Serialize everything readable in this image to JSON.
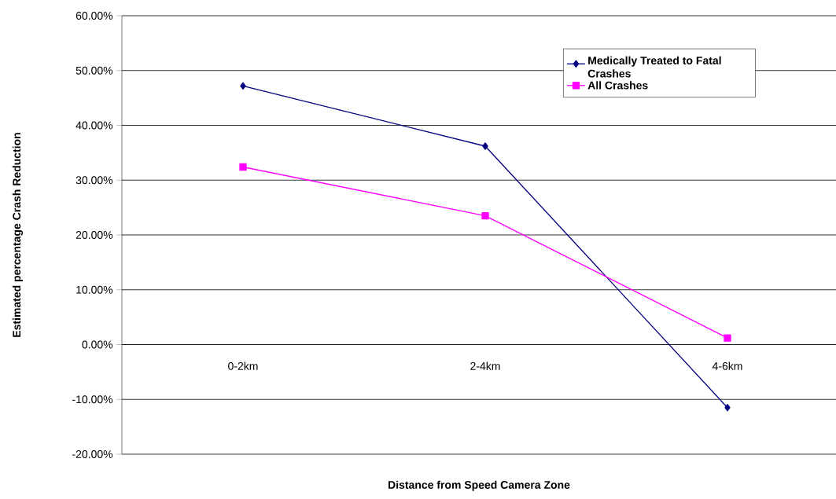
{
  "chart_data": {
    "type": "line",
    "xlabel": "Distance from Speed Camera Zone",
    "ylabel": "Estimated percentage Crash Reduction",
    "categories": [
      "0-2km",
      "2-4km",
      "4-6km"
    ],
    "series": [
      {
        "name": "Medically Treated to Fatal Crashes",
        "color": "#000080",
        "marker": "diamond",
        "values": [
          47.2,
          36.2,
          -11.5
        ]
      },
      {
        "name": "All Crashes",
        "color": "#ff00ff",
        "marker": "square",
        "values": [
          32.4,
          23.5,
          1.2
        ]
      }
    ],
    "ylim": [
      -20,
      60
    ],
    "yticks": [
      {
        "value": -20,
        "label": "-20.00%"
      },
      {
        "value": -10,
        "label": "-10.00%"
      },
      {
        "value": 0,
        "label": "0.00%"
      },
      {
        "value": 10,
        "label": "10.00%"
      },
      {
        "value": 20,
        "label": "20.00%"
      },
      {
        "value": 30,
        "label": "30.00%"
      },
      {
        "value": 40,
        "label": "40.00%"
      },
      {
        "value": 50,
        "label": "50.00%"
      },
      {
        "value": 60,
        "label": "60.00%"
      }
    ],
    "grid": "y",
    "legend": "top right",
    "line_style": "solid"
  }
}
